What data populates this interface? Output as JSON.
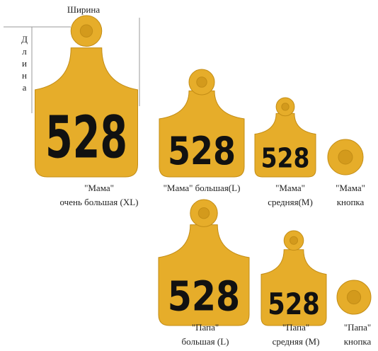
{
  "dimensions": {
    "width_label": "Ширина",
    "length_label": "Длина"
  },
  "tags": [
    {
      "kind": "tag",
      "number": "528",
      "caption": [
        "\"Мама\"",
        "очень большая (XL)"
      ]
    },
    {
      "kind": "tag",
      "number": "528",
      "caption": [
        "\"Мама\" большая(L)"
      ]
    },
    {
      "kind": "tag",
      "number": "528",
      "caption": [
        "\"Мама\"",
        "средняя(М)"
      ]
    },
    {
      "kind": "button",
      "caption": [
        "\"Мама\"",
        "кнопка"
      ]
    },
    {
      "kind": "tag",
      "number": "528",
      "caption": [
        "\"Папа\"",
        "большая (L)"
      ]
    },
    {
      "kind": "tag",
      "number": "528",
      "caption": [
        "\"Папа\"",
        "средняя (М)"
      ]
    },
    {
      "kind": "button",
      "caption": [
        "\"Папа\"",
        "кнопка"
      ]
    }
  ]
}
